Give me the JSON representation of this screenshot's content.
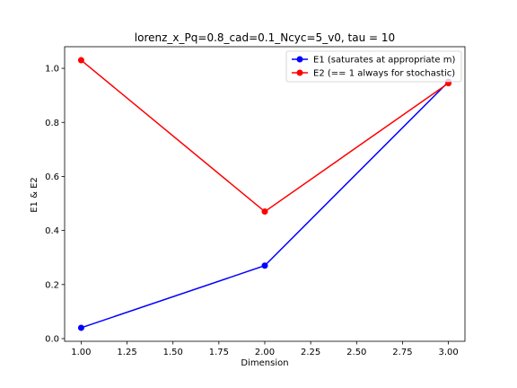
{
  "chart_data": {
    "type": "line",
    "title": "lorenz_x_Pq=0.8_cad=0.1_Ncyc=5_v0, tau = 10",
    "xlabel": "Dimension",
    "ylabel": "E1 & E2",
    "x": [
      1.0,
      2.0,
      3.0
    ],
    "xlim": [
      0.91,
      3.09
    ],
    "ylim": [
      -0.01,
      1.08
    ],
    "xticks": [
      1.0,
      1.25,
      1.5,
      1.75,
      2.0,
      2.25,
      2.5,
      2.75,
      3.0
    ],
    "xtick_labels": [
      "1.00",
      "1.25",
      "1.50",
      "1.75",
      "2.00",
      "2.25",
      "2.50",
      "2.75",
      "3.00"
    ],
    "yticks": [
      0.0,
      0.2,
      0.4,
      0.6,
      0.8,
      1.0
    ],
    "ytick_labels": [
      "0.0",
      "0.2",
      "0.4",
      "0.6",
      "0.8",
      "1.0"
    ],
    "grid": false,
    "legend_position": "top-right",
    "series": [
      {
        "name": "E1 (saturates at appropriate m)",
        "color": "#0000ff",
        "marker": "circle",
        "values": [
          0.04,
          0.27,
          0.95
        ]
      },
      {
        "name": "E2 (== 1 always for stochastic)",
        "color": "#ff0000",
        "marker": "circle",
        "values": [
          1.03,
          0.47,
          0.945
        ]
      }
    ]
  }
}
